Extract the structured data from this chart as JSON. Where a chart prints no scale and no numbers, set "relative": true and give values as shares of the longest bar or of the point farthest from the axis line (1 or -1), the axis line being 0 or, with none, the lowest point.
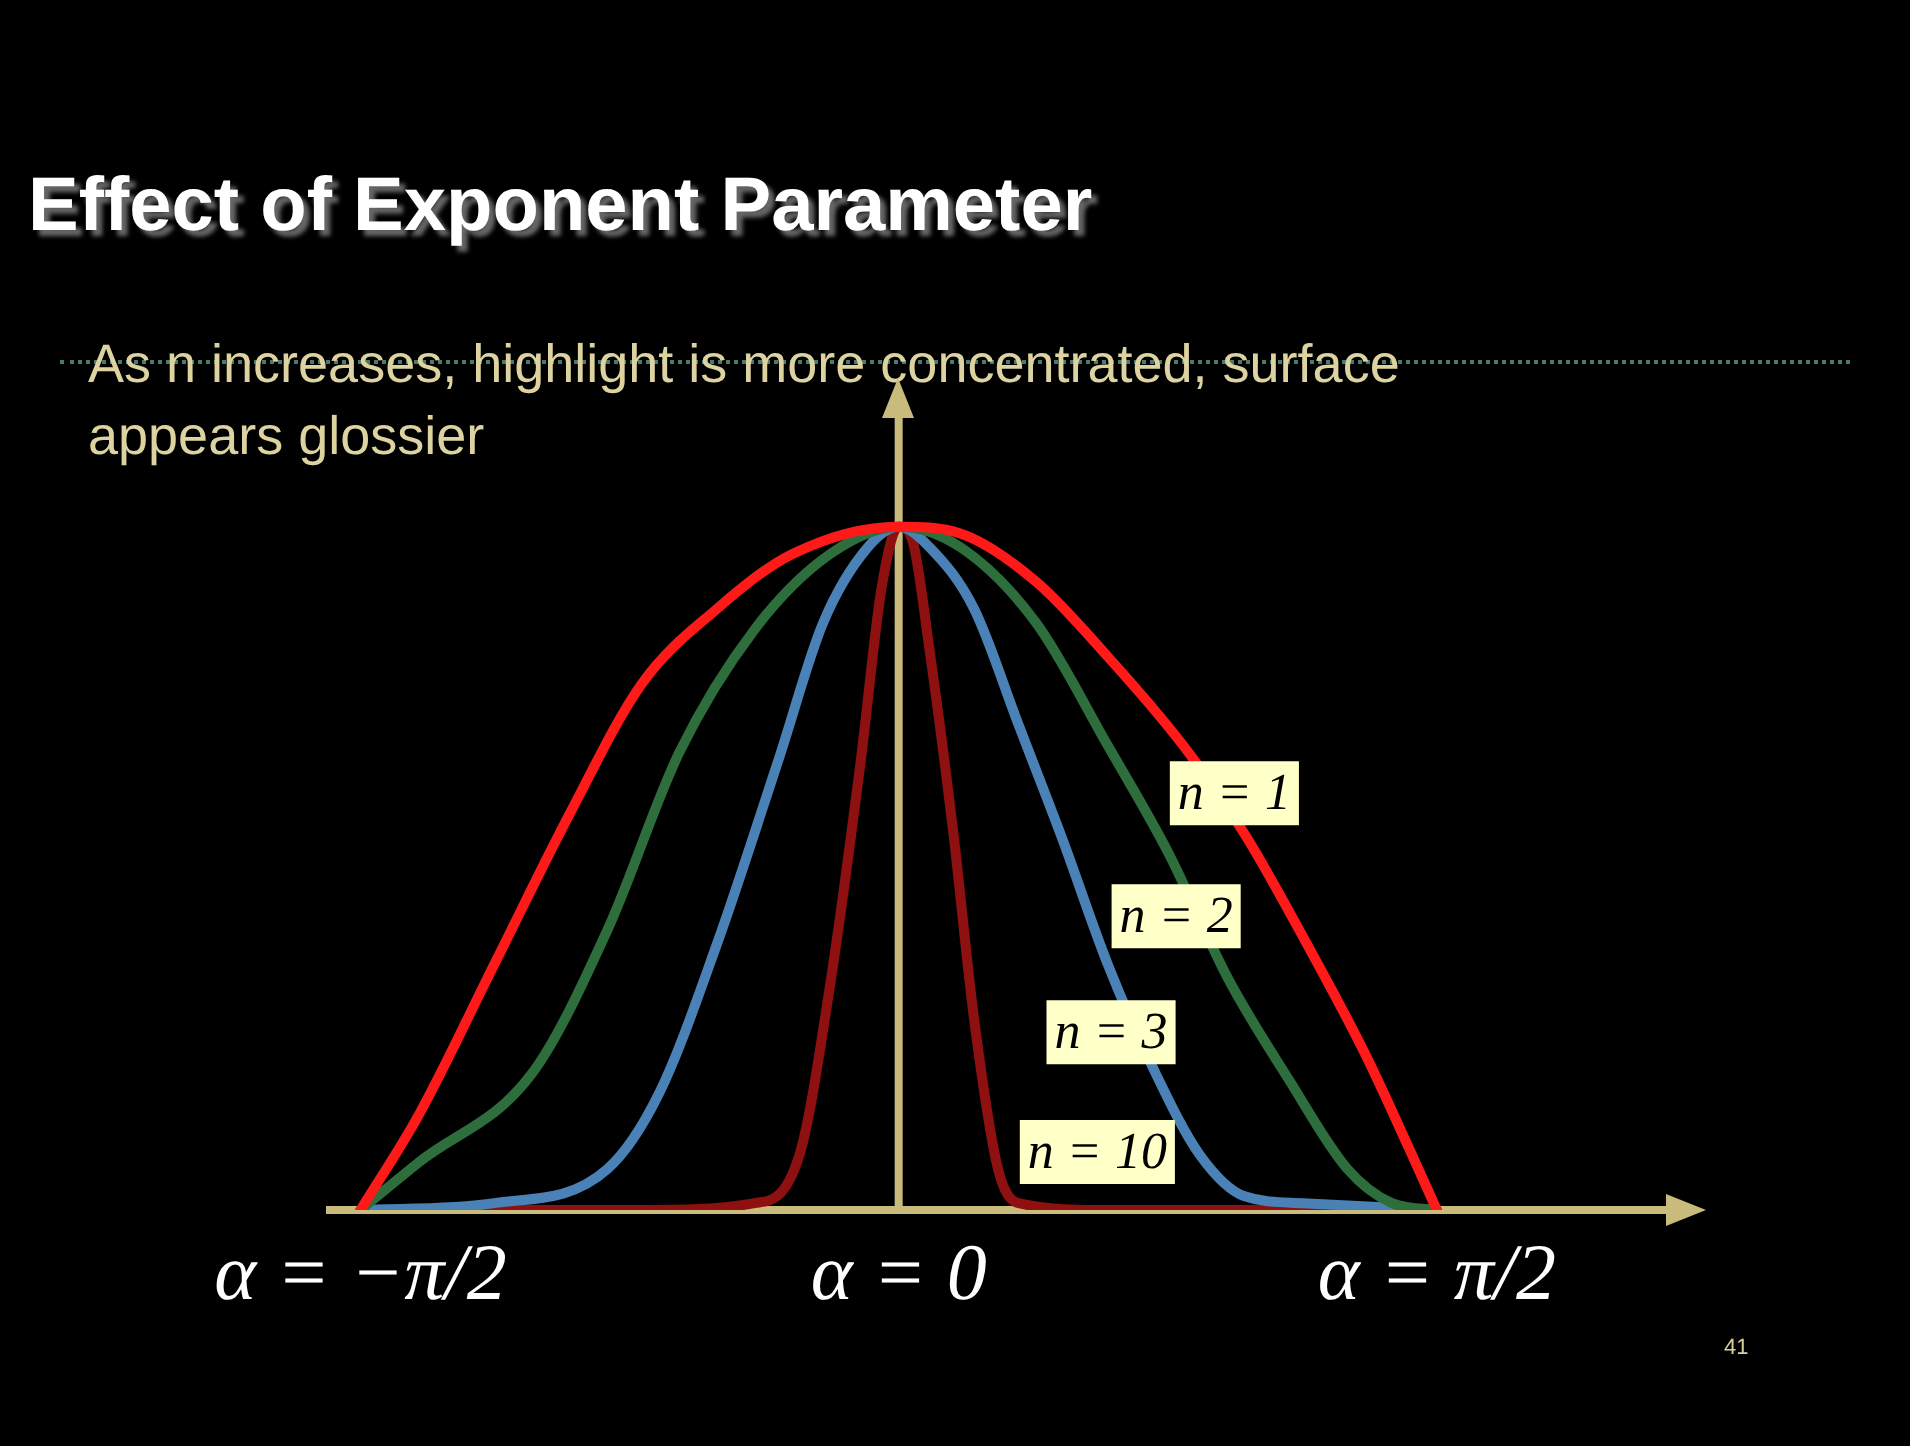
{
  "chart_data": {
    "type": "line",
    "title": "Effect of Exponent Parameter",
    "subtitle": "As n increases, highlight is more concentrated, surface appears glossier",
    "relative": true,
    "legend": false,
    "grid": false,
    "marker": "none",
    "line_style": "solid",
    "xlim": [
      -1.66,
      2.31
    ],
    "xticks": [
      {
        "value": -1.571,
        "label": "α = −π/2"
      },
      {
        "value": 0,
        "label": "α = 0"
      },
      {
        "value": 1.571,
        "label": "α = π/2"
      }
    ],
    "annotations": [
      "41"
    ],
    "ref_lines": [
      {
        "axis": "x",
        "value": 0,
        "color": "#c9bb7c"
      }
    ],
    "series": [
      {
        "name": "n = 1",
        "color": "#ff1a1a",
        "x": [
          -1.571,
          -1.4,
          -1.18,
          -0.96,
          -0.75,
          -0.53,
          -0.31,
          0,
          0.18,
          0.4,
          0.61,
          0.83,
          1.01,
          1.18,
          1.36,
          1.49,
          1.571
        ],
        "values": [
          0,
          0.14,
          0.36,
          0.58,
          0.77,
          0.88,
          0.96,
          1,
          0.99,
          0.92,
          0.81,
          0.68,
          0.55,
          0.4,
          0.23,
          0.09,
          0
        ]
      },
      {
        "name": "n = 2",
        "color": "#2d6e3c",
        "x": [
          -1.571,
          -1.4,
          -1.07,
          -0.85,
          -0.64,
          -0.42,
          -0.2,
          0,
          0.18,
          0.4,
          0.61,
          0.79,
          0.96,
          1.14,
          1.31,
          1.44,
          1.571
        ],
        "values": [
          0,
          0.07,
          0.2,
          0.41,
          0.67,
          0.85,
          0.96,
          1,
          0.97,
          0.86,
          0.68,
          0.52,
          0.34,
          0.19,
          0.06,
          0.01,
          0
        ]
      },
      {
        "name": "n = 3",
        "color": "#4a82b8",
        "x": [
          -1.571,
          -1.18,
          -0.85,
          -0.7,
          -0.53,
          -0.35,
          -0.22,
          -0.09,
          0,
          0.09,
          0.22,
          0.35,
          0.48,
          0.61,
          0.75,
          0.88,
          1.01,
          1.18,
          1.571
        ],
        "values": [
          0,
          0.01,
          0.06,
          0.17,
          0.39,
          0.66,
          0.86,
          0.97,
          1,
          0.97,
          0.88,
          0.71,
          0.54,
          0.36,
          0.2,
          0.08,
          0.02,
          0.01,
          0
        ]
      },
      {
        "name": "n = 10",
        "color": "#8e1010",
        "x": [
          -1.571,
          -0.75,
          -0.42,
          -0.29,
          -0.2,
          -0.11,
          -0.05,
          0,
          0.04,
          0.09,
          0.16,
          0.22,
          0.29,
          0.35,
          0.61,
          1.571
        ],
        "values": [
          0,
          0,
          0.01,
          0.08,
          0.33,
          0.66,
          0.91,
          1,
          0.98,
          0.82,
          0.55,
          0.28,
          0.06,
          0.01,
          0,
          0
        ]
      }
    ]
  }
}
